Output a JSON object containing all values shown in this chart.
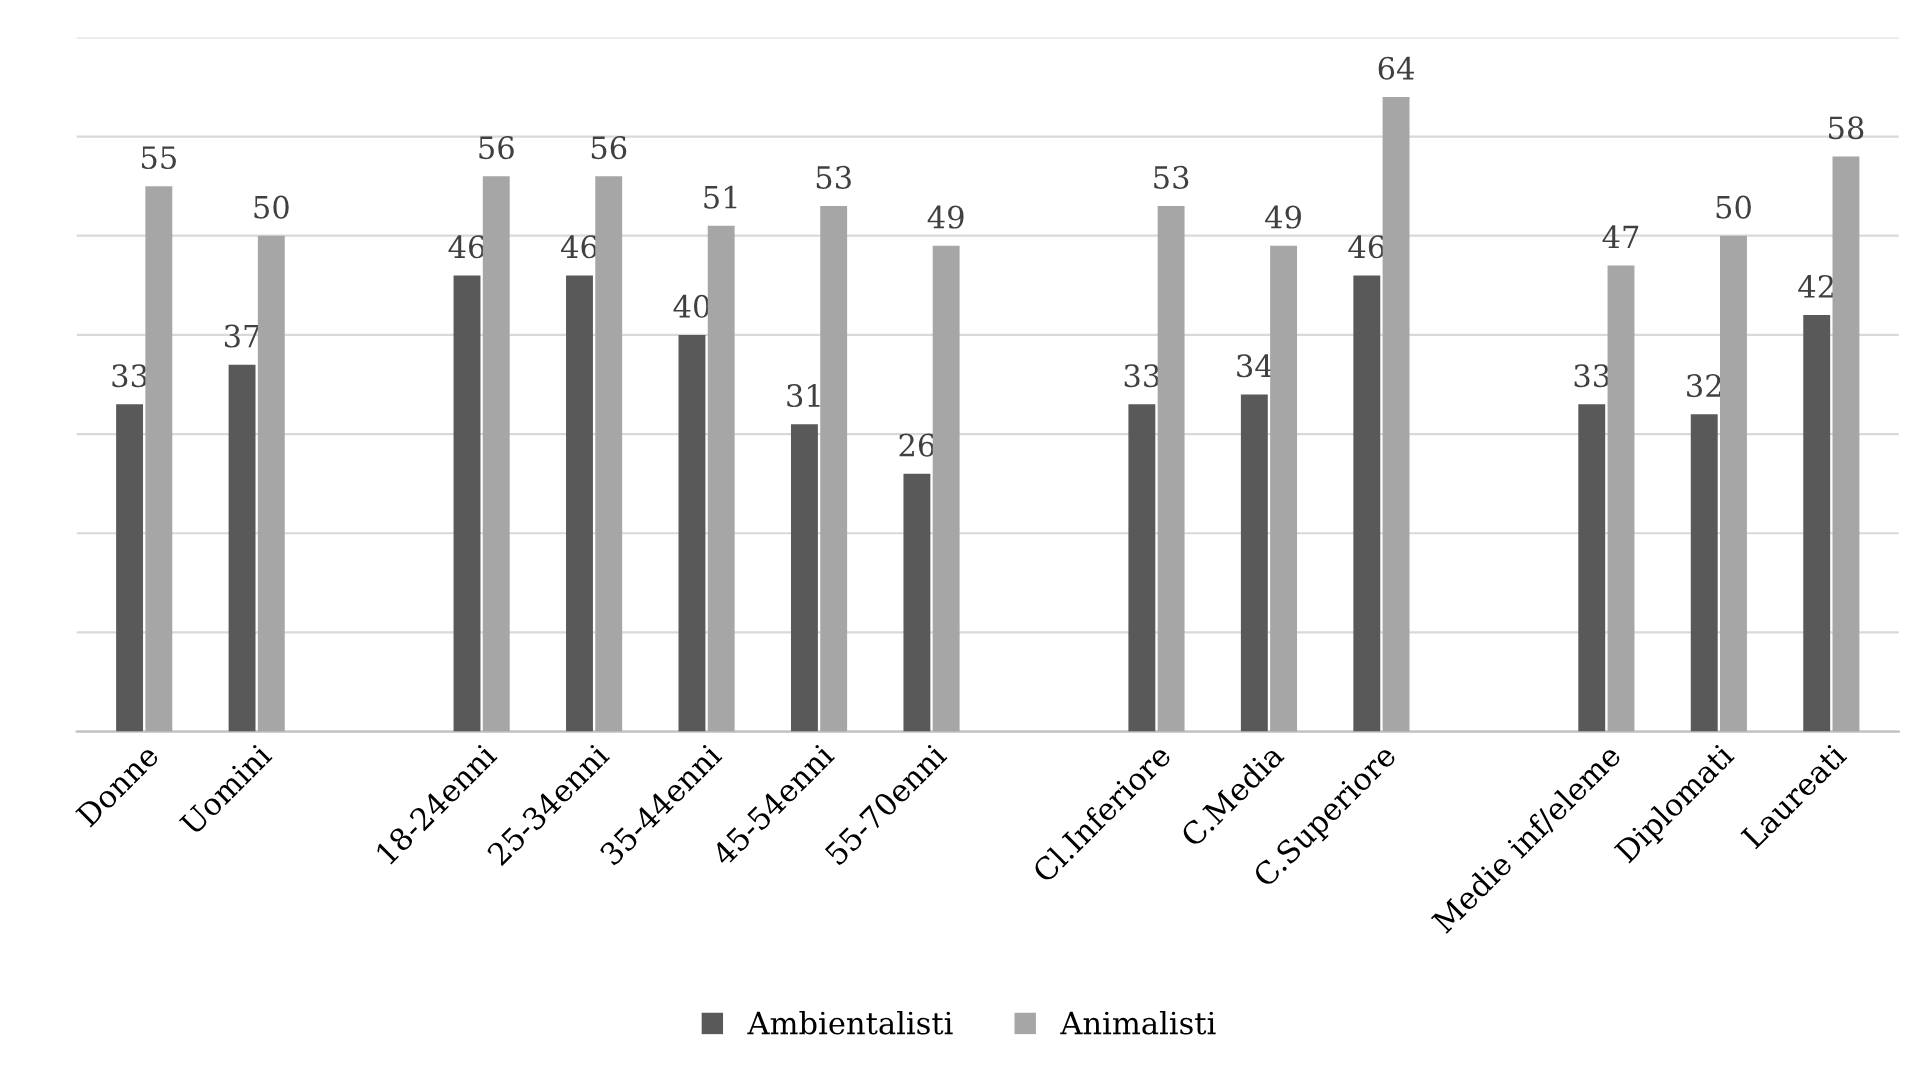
{
  "chart_data": {
    "type": "bar",
    "categories": [
      "Donne",
      "Uomini",
      null,
      "18-24enni",
      "25-34enni",
      "35-44enni",
      "45-54enni",
      "55-70enni",
      null,
      "Cl.Inferiore",
      "C.Media",
      "C.Superiore",
      null,
      "Medie inf/eleme",
      "Diplomati",
      "Laureati"
    ],
    "series": [
      {
        "name": "Ambientalisti",
        "color": "#595959",
        "values": [
          33,
          37,
          null,
          46,
          46,
          40,
          31,
          26,
          null,
          33,
          34,
          46,
          null,
          33,
          32,
          42
        ]
      },
      {
        "name": "Animalisti",
        "color": "#a6a6a6",
        "values": [
          55,
          50,
          null,
          56,
          56,
          51,
          53,
          49,
          null,
          53,
          49,
          64,
          null,
          47,
          50,
          58
        ]
      }
    ],
    "ylim": [
      0,
      70
    ],
    "yticks": [
      {
        "value": 0,
        "label": null
      },
      {
        "value": 10,
        "label": null
      },
      {
        "value": 20,
        "label": null
      },
      {
        "value": 30,
        "label": null
      },
      {
        "value": 40,
        "label": null
      },
      {
        "value": 50,
        "label": null
      },
      {
        "value": 60,
        "label": null
      },
      {
        "value": 70,
        "label": null
      }
    ],
    "tick_labels": "x",
    "grid": "y",
    "legend": "bottom",
    "data_labels": true
  }
}
